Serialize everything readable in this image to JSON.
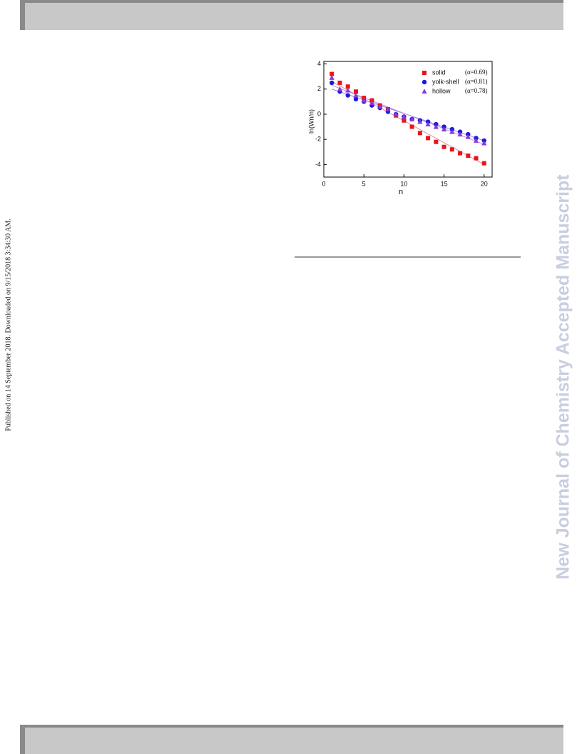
{
  "sidebar": {
    "text": "Published on 14 September 2018. Downloaded on 9/15/2018 3:34:30 AM."
  },
  "watermark": {
    "text": "New Journal of Chemistry Accepted Manuscript"
  },
  "chart_data": {
    "type": "scatter",
    "x_label": "n",
    "y_label": "ln(Wn/n)",
    "x": [
      1,
      2,
      3,
      4,
      5,
      6,
      7,
      8,
      9,
      10,
      11,
      12,
      13,
      14,
      15,
      16,
      17,
      18,
      19,
      20
    ],
    "xlim": [
      0,
      21
    ],
    "ylim": [
      -5,
      4.2
    ],
    "xticks": [
      0,
      5,
      10,
      15,
      20
    ],
    "yticks": [
      -4,
      -2,
      0,
      2,
      4
    ],
    "fit_x": [
      1,
      20
    ],
    "series": [
      {
        "name": "solid",
        "note": "(α=0.69)",
        "color": "#e8141c",
        "marker": "square",
        "fit_color": "#e88890",
        "values": [
          3.2,
          2.5,
          2.2,
          1.8,
          1.3,
          1.1,
          0.7,
          0.4,
          -0.1,
          -0.5,
          -1.0,
          -1.5,
          -1.9,
          -2.2,
          -2.6,
          -2.8,
          -3.1,
          -3.3,
          -3.5,
          -3.9
        ],
        "fit_values": [
          2.6,
          -4.0
        ]
      },
      {
        "name": "yolk-shell",
        "note": "(α=0.81)",
        "color": "#1a1ae0",
        "marker": "circle",
        "fit_color": "#8a8ae8",
        "values": [
          2.5,
          1.8,
          1.5,
          1.2,
          1.0,
          0.7,
          0.5,
          0.2,
          0.0,
          -0.2,
          -0.4,
          -0.5,
          -0.6,
          -0.8,
          -1.0,
          -1.2,
          -1.4,
          -1.6,
          -1.9,
          -2.1
        ],
        "fit_values": [
          2.0,
          -2.1
        ]
      },
      {
        "name": "hollow",
        "note": "(α=0.78)",
        "color": "#8a3ad8",
        "marker": "triangle",
        "fit_color": "#c090e0",
        "values": [
          2.9,
          2.0,
          1.9,
          1.5,
          1.1,
          0.9,
          0.6,
          0.4,
          0.0,
          -0.2,
          -0.4,
          -0.6,
          -0.8,
          -1.0,
          -1.2,
          -1.4,
          -1.6,
          -1.8,
          -2.1,
          -2.3
        ],
        "fit_values": [
          2.3,
          -2.4
        ]
      }
    ]
  }
}
